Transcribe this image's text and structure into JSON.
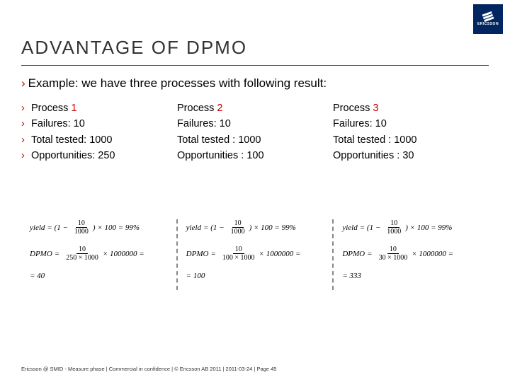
{
  "logo_text": "ERICSSON",
  "title": "ADVANTAGE OF DPMO",
  "intro": "Example: we have three processes with following result:",
  "rows": {
    "r0c0": "Process ",
    "r0c1": "Process ",
    "r0c2": "Process ",
    "n0": "1",
    "n1": "2",
    "n2": "3",
    "r1c0": "Failures: 10",
    "r1c1": "Failures: 10",
    "r1c2": "Failures: 10",
    "r2c0": "Total tested: 1000",
    "r2c1": "Total tested : 1000",
    "r2c2": "Total tested : 1000",
    "r3c0": "Opportunities: 250",
    "r3c1": "Opportunities : 100",
    "r3c2": "Opportunities : 30"
  },
  "formulas": {
    "y_lhs": "yield",
    "y_rhs_tail": ") × 100 = 99%",
    "y_num": "10",
    "y_den": "1000",
    "d_lhs": "DPMO",
    "d_num": "10",
    "d0_den": "250 × 1000",
    "d1_den": "100 × 1000",
    "d2_den": "30 × 1000",
    "d0_tail": "× 1000000 =",
    "d1_tail": "× 1000000 =",
    "d2_tail": "× 1000000 =",
    "r0": "= 40",
    "r1": "= 100",
    "r2": "= 333"
  },
  "footer": "Ericsson @ SMID - Measure phase  |  Commercial in confidence  |  © Ericsson AB 2011  |  2011-03-24  |  Page  45"
}
